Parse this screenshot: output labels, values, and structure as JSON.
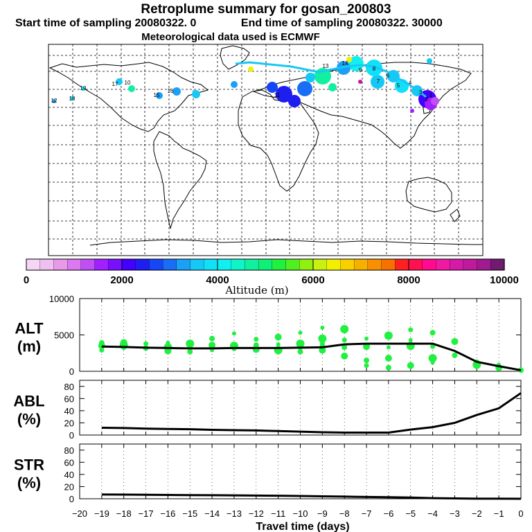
{
  "header": {
    "title": "Retroplume summary for gosan_200803",
    "start_label": "Start time of sampling 20080322.    0",
    "end_label": "End time of sampling 20080322. 30000",
    "met_label": "Meteorological data used is ECMWF"
  },
  "colorbar": {
    "label": "Altitude (m)",
    "ticks": [
      "0",
      "2000",
      "4000",
      "6000",
      "8000",
      "10000"
    ],
    "colors": [
      "#f6d6f6",
      "#efc0ef",
      "#e89ae8",
      "#dc78f0",
      "#c050f5",
      "#a020ff",
      "#7810ff",
      "#4400ff",
      "#1e1ef0",
      "#1646f5",
      "#1a6ef5",
      "#1aa0f5",
      "#16c8f5",
      "#12e0f8",
      "#10f0f0",
      "#10f5c8",
      "#10f0a0",
      "#10f078",
      "#20f040",
      "#50f020",
      "#90f010",
      "#c8f010",
      "#f0f000",
      "#f8d000",
      "#f8b000",
      "#f89000",
      "#f87000",
      "#ff2020",
      "#ff1050",
      "#ff0a90",
      "#f01aa0",
      "#d61aa8",
      "#c01a9c",
      "#a01a90",
      "#701a70"
    ]
  },
  "map": {
    "plume_labels": [
      "16",
      "15",
      "10",
      "17",
      "19",
      "18",
      "12",
      "11",
      "13",
      "14",
      "9",
      "8",
      "7",
      "6",
      "5",
      "4",
      "3",
      "2",
      "1"
    ]
  },
  "chart_data": [
    {
      "type": "line",
      "name": "ALT",
      "ylabel": "ALT\n(m)",
      "ylabel_lines": [
        "ALT",
        "(m)"
      ],
      "ylim": [
        0,
        10000
      ],
      "yticks": [
        "0",
        "5000",
        "10000"
      ],
      "x": [
        -19,
        -18,
        -17,
        -16,
        -15,
        -14,
        -13,
        -12,
        -11,
        -10,
        -9,
        -8,
        -7,
        -6,
        -5,
        -4,
        -3,
        -2,
        -1,
        0
      ],
      "mean": [
        3400,
        3350,
        3250,
        3200,
        3150,
        3150,
        3200,
        3200,
        3200,
        3250,
        3300,
        3700,
        3800,
        3800,
        3800,
        3800,
        2800,
        1300,
        700,
        150
      ],
      "points": [
        [
          -19,
          3500
        ],
        [
          -19,
          3900
        ],
        [
          -19,
          2900
        ],
        [
          -18,
          3600
        ],
        [
          -18,
          3200
        ],
        [
          -18,
          3950
        ],
        [
          -17,
          3200
        ],
        [
          -17,
          3800
        ],
        [
          -16,
          3300
        ],
        [
          -16,
          3900
        ],
        [
          -16,
          2800
        ],
        [
          -15,
          2700
        ],
        [
          -15,
          3400
        ],
        [
          -15,
          3800
        ],
        [
          -14,
          2900
        ],
        [
          -14,
          3600
        ],
        [
          -14,
          4500
        ],
        [
          -13,
          3100
        ],
        [
          -13,
          3500
        ],
        [
          -13,
          5200
        ],
        [
          -12,
          3000
        ],
        [
          -12,
          3600
        ],
        [
          -12,
          4400
        ],
        [
          -11,
          2900
        ],
        [
          -11,
          3700
        ],
        [
          -11,
          4700
        ],
        [
          -10,
          2700
        ],
        [
          -10,
          3300
        ],
        [
          -10,
          3800
        ],
        [
          -10,
          5300
        ],
        [
          -9,
          2900
        ],
        [
          -9,
          3400
        ],
        [
          -9,
          3800
        ],
        [
          -9,
          4500
        ],
        [
          -9,
          6000
        ],
        [
          -8,
          2100
        ],
        [
          -8,
          3300
        ],
        [
          -8,
          4300
        ],
        [
          -8,
          5800
        ],
        [
          -7,
          4500
        ],
        [
          -7,
          3400
        ],
        [
          -7,
          1500
        ],
        [
          -7,
          800
        ],
        [
          -6,
          4900
        ],
        [
          -6,
          3300
        ],
        [
          -6,
          1800
        ],
        [
          -6,
          500
        ],
        [
          -5,
          5700
        ],
        [
          -5,
          3500
        ],
        [
          -5,
          4300
        ],
        [
          -5,
          800
        ],
        [
          -4,
          5300
        ],
        [
          -4,
          3400
        ],
        [
          -4,
          1800
        ],
        [
          -4,
          1200
        ],
        [
          -3,
          4100
        ],
        [
          -3,
          2200
        ],
        [
          -2,
          1300
        ],
        [
          -2,
          900
        ],
        [
          -1,
          900
        ],
        [
          -1,
          500
        ],
        [
          0,
          150
        ]
      ]
    },
    {
      "type": "line",
      "name": "ABL",
      "ylabel_lines": [
        "ABL",
        "(%)"
      ],
      "ylim": [
        0,
        90
      ],
      "yticks": [
        "0",
        "20",
        "40",
        "60",
        "80"
      ],
      "x": [
        -19,
        -18,
        -17,
        -16,
        -15,
        -14,
        -13,
        -12,
        -11,
        -10,
        -9,
        -8,
        -7,
        -6,
        -5,
        -4,
        -3,
        -2,
        -1,
        0
      ],
      "values": [
        12,
        11.5,
        10.5,
        10,
        9.5,
        8.5,
        8,
        7.5,
        6.5,
        5.5,
        4.5,
        4,
        4,
        4,
        9,
        13,
        20,
        33,
        44,
        69
      ]
    },
    {
      "type": "line",
      "name": "STR",
      "ylabel_lines": [
        "STR",
        "(%)"
      ],
      "ylim": [
        0,
        90
      ],
      "yticks": [
        "0",
        "20",
        "40",
        "60",
        "80"
      ],
      "x": [
        -19,
        -18,
        -17,
        -16,
        -15,
        -14,
        -13,
        -12,
        -11,
        -10,
        -9,
        -8,
        -7,
        -6,
        -5,
        -4,
        -3,
        -2,
        -1,
        0
      ],
      "values": [
        7,
        6.8,
        6.5,
        6.2,
        6,
        5.8,
        5.5,
        5.2,
        5,
        4.5,
        4,
        3.5,
        3,
        2.5,
        2,
        1,
        0.5,
        0.2,
        0.1,
        0
      ],
      "xlabel": "Travel time (days)",
      "xticks": [
        "−20",
        "−19",
        "−18",
        "−17",
        "−16",
        "−15",
        "−14",
        "−13",
        "−12",
        "−11",
        "−10",
        "−9",
        "−8",
        "−7",
        "−6",
        "−5",
        "−4",
        "−3",
        "−2",
        "−1",
        "0"
      ]
    }
  ]
}
